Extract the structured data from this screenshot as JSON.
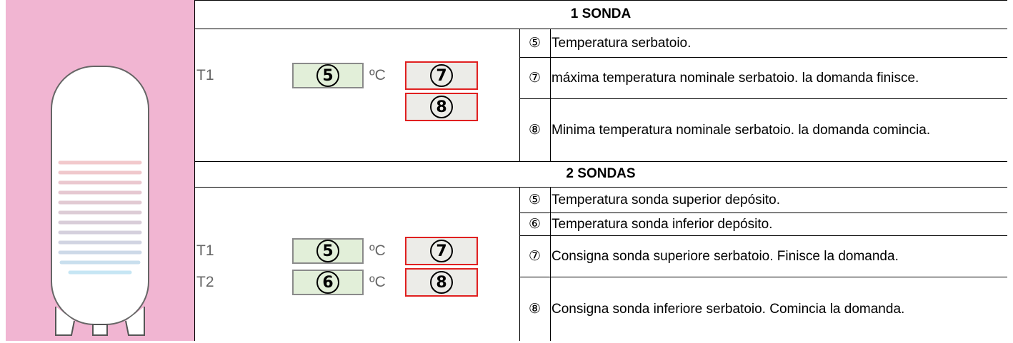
{
  "sections": [
    {
      "title": "1 SONDA",
      "diagram": [
        {
          "label": "T1",
          "reading": "5",
          "unit": "ºC",
          "setpoint": "7"
        },
        {
          "setpoint": "8"
        }
      ],
      "rows": [
        {
          "marker": "⑤",
          "text": "Temperatura serbatoio."
        },
        {
          "marker": "⑦",
          "text": "máxima temperatura nominale serbatoio. la domanda finisce."
        },
        {
          "marker": "⑧",
          "text": "Minima temperatura nominale serbatoio. la domanda comincia."
        }
      ]
    },
    {
      "title": "2 SONDAS",
      "diagram": [
        {
          "label": "T1",
          "reading": "5",
          "unit": "ºC",
          "setpoint": "7"
        },
        {
          "label": "T2",
          "reading": "6",
          "unit": "ºC",
          "setpoint": "8"
        }
      ],
      "rows": [
        {
          "marker": "⑤",
          "text": "Temperatura sonda superior depósito."
        },
        {
          "marker": "⑥",
          "text": "Temperatura sonda inferior depósito."
        },
        {
          "marker": "⑦",
          "text": "Consigna sonda superiore serbatoio. Finisce la domanda."
        },
        {
          "marker": "⑧",
          "text": "Consigna sonda inferiore serbatoio. Comincia la domanda."
        }
      ]
    }
  ]
}
